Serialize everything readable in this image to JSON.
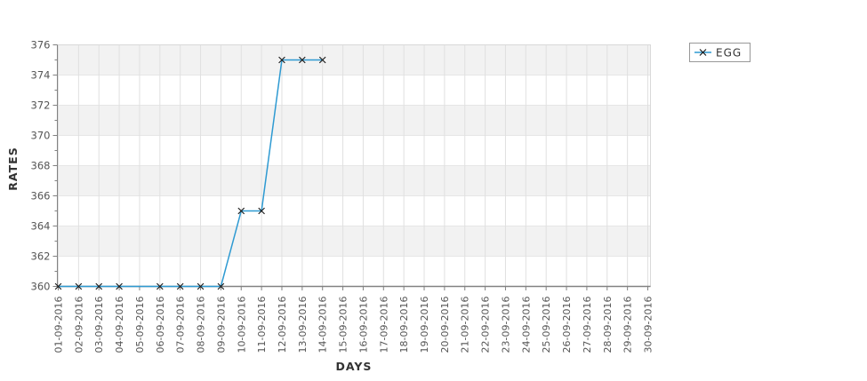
{
  "chart_data": {
    "type": "line",
    "title": "",
    "xlabel": "DAYS",
    "ylabel": "RATES",
    "x_categories": [
      "01-09-2016",
      "02-09-2016",
      "03-09-2016",
      "04-09-2016",
      "05-09-2016",
      "06-09-2016",
      "07-09-2016",
      "08-09-2016",
      "09-09-2016",
      "10-09-2016",
      "11-09-2016",
      "12-09-2016",
      "13-09-2016",
      "14-09-2016",
      "15-09-2016",
      "16-09-2016",
      "17-09-2016",
      "18-09-2016",
      "19-09-2016",
      "20-09-2016",
      "21-09-2016",
      "22-09-2016",
      "23-09-2016",
      "24-09-2016",
      "25-09-2016",
      "26-09-2016",
      "27-09-2016",
      "28-09-2016",
      "29-09-2016",
      "30-09-2016"
    ],
    "series": [
      {
        "name": "EGG",
        "values": [
          360,
          360,
          360,
          360,
          null,
          360,
          360,
          360,
          360,
          365,
          365,
          375,
          375,
          375,
          null,
          null,
          null,
          null,
          null,
          null,
          null,
          null,
          null,
          null,
          null,
          null,
          null,
          null,
          null,
          null
        ],
        "connect_gaps": true
      }
    ],
    "ylim": [
      360,
      376
    ],
    "y_major_step": 2,
    "y_minor_step": 1,
    "y_tick_labels": [
      "376",
      "374",
      "372",
      "370",
      "368",
      "366",
      "364",
      "362",
      "360"
    ],
    "grid": true,
    "legend_position": "outside-top-right",
    "colors": {
      "line": "#2e9ad2",
      "marker": "#1b1b1b",
      "band": "#f2f2f2",
      "band_alt": "#ffffff",
      "vgrid": "#e0e0e0",
      "hgrid": "#e6e6e6",
      "plot_border": "#d9d9d9",
      "axis": "#828282",
      "tick_label": "#555555",
      "axis_title": "#333333",
      "legend_border": "#989898",
      "legend_text": "#333333",
      "background": "#ffffff"
    }
  }
}
